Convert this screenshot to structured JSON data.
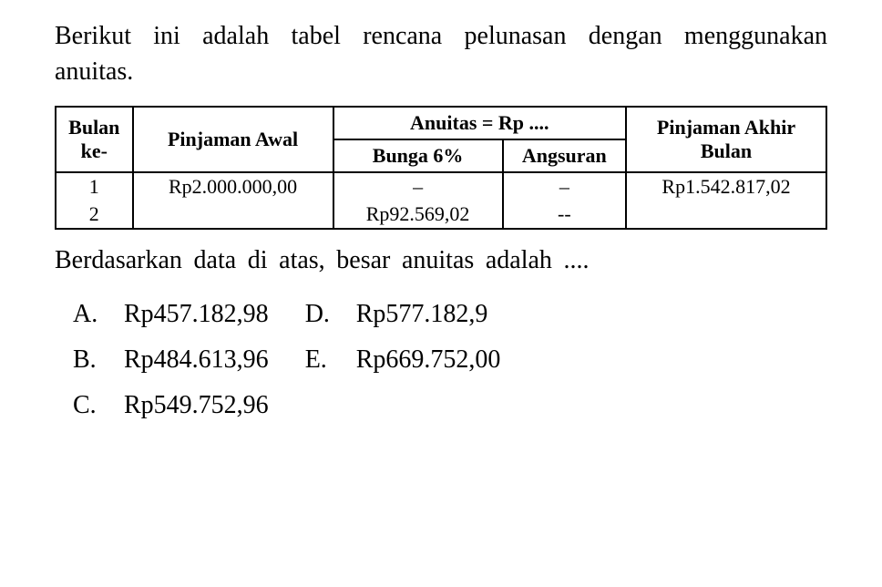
{
  "intro": "Berikut ini adalah tabel rencana pelunasan dengan menggunakan anuitas.",
  "table": {
    "headers": {
      "bulan": "Bulan ke-",
      "pinjaman_awal": "Pinjaman Awal",
      "anuitas": "Anuitas = Rp ....",
      "bunga": "Bunga 6%",
      "angsuran": "Angsuran",
      "pinjaman_akhir": "Pinjaman Akhir Bulan"
    },
    "rows": [
      {
        "bulan": "1",
        "pinjaman_awal": "Rp2.000.000,00",
        "bunga": "–",
        "angsuran": "–",
        "akhir": "Rp1.542.817,02"
      },
      {
        "bulan": "2",
        "pinjaman_awal": "",
        "bunga": "Rp92.569,02",
        "angsuran": "--",
        "akhir": ""
      }
    ]
  },
  "question": "Berdasarkan data di atas, besar anuitas adalah ....",
  "options": {
    "A": "Rp457.182,98",
    "B": "Rp484.613,96",
    "C": "Rp549.752,96",
    "D": "Rp577.182,9",
    "E": "Rp669.752,00"
  },
  "colors": {
    "text": "#000000",
    "background": "#ffffff",
    "border": "#000000"
  },
  "fonts": {
    "body_size": 28,
    "table_size": 22
  }
}
